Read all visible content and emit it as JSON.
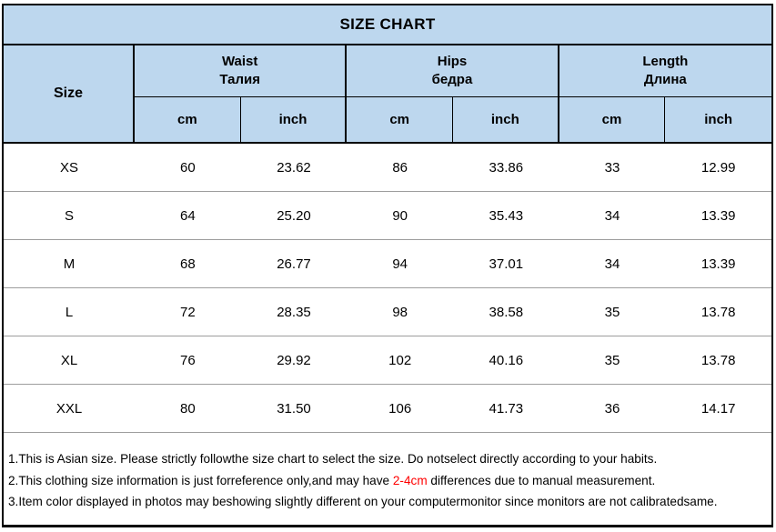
{
  "chart_data": {
    "type": "table",
    "title": "SIZE CHART",
    "row_header": "Size",
    "column_groups": [
      {
        "en": "Waist",
        "ru": "Талия"
      },
      {
        "en": "Hips",
        "ru": "бедра"
      },
      {
        "en": "Length",
        "ru": "Длина"
      }
    ],
    "units": {
      "cm": "cm",
      "inch": "inch"
    },
    "columns": [
      "Size",
      "Waist cm",
      "Waist inch",
      "Hips cm",
      "Hips inch",
      "Length cm",
      "Length inch"
    ],
    "rows": [
      [
        "XS",
        "60",
        "23.62",
        "86",
        "33.86",
        "33",
        "12.99"
      ],
      [
        "S",
        "64",
        "25.20",
        "90",
        "35.43",
        "34",
        "13.39"
      ],
      [
        "M",
        "68",
        "26.77",
        "94",
        "37.01",
        "34",
        "13.39"
      ],
      [
        "L",
        "72",
        "28.35",
        "98",
        "38.58",
        "35",
        "13.78"
      ],
      [
        "XL",
        "76",
        "29.92",
        "102",
        "40.16",
        "35",
        "13.78"
      ],
      [
        "XXL",
        "80",
        "31.50",
        "106",
        "41.73",
        "36",
        "14.17"
      ]
    ]
  },
  "notes": {
    "line1": "1.This is Asian size. Please strictly followthe size chart to select the size. Do notselect directly according to your habits.",
    "line2_pre": "2.This clothing size information is just forreference only,and may have ",
    "line2_red": "2-4cm",
    "line2_post": " differences due to manual measurement.",
    "line3": "3.Item color displayed in photos may beshowing slightly different on your computermonitor since monitors are not calibratedsame."
  },
  "colors": {
    "header_bg": "#bdd7ee",
    "grid_border": "#000000",
    "row_divider": "#9d9d9d",
    "note_highlight": "#ff0000"
  }
}
